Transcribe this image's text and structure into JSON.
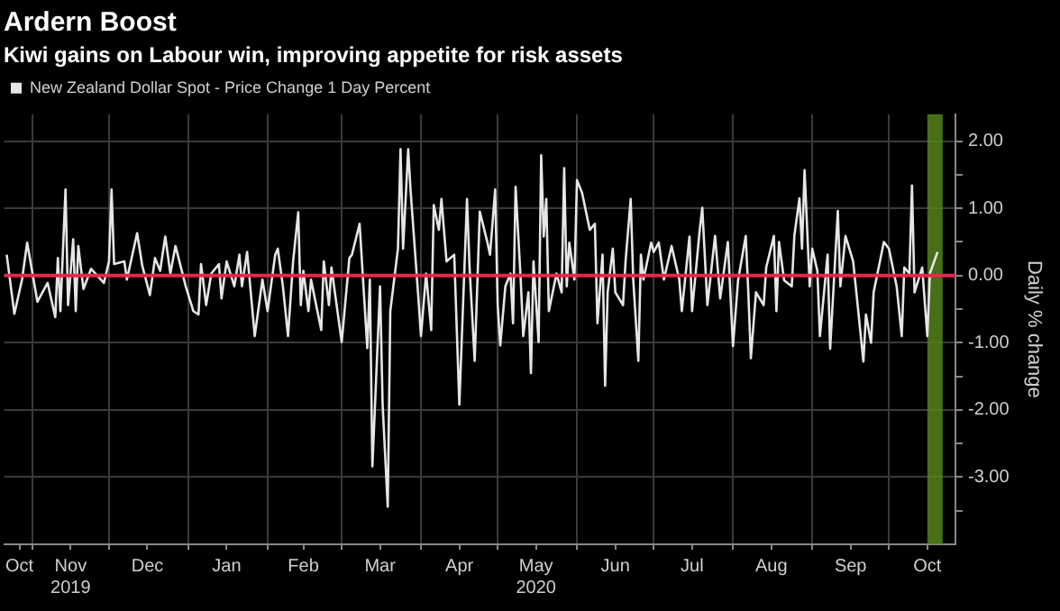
{
  "chart_data": {
    "type": "line",
    "title": "Ardern Boost",
    "subtitle": "Kiwi gains on Labour win, improving appetite for risk assets",
    "ylabel": "Daily % change",
    "x": [
      "2019-10-22",
      "2019-10-25",
      "2019-10-28",
      "2019-10-30",
      "2019-11-03",
      "2019-11-07",
      "2019-11-10",
      "2019-11-11",
      "2019-11-12",
      "2019-11-14",
      "2019-11-15",
      "2019-11-17",
      "2019-11-18",
      "2019-11-19",
      "2019-11-21",
      "2019-11-24",
      "2019-11-29",
      "2019-12-01",
      "2019-12-02",
      "2019-12-03",
      "2019-12-07",
      "2019-12-08",
      "2019-12-12",
      "2019-12-14",
      "2019-12-17",
      "2019-12-19",
      "2019-12-21",
      "2019-12-23",
      "2019-12-25",
      "2019-12-27",
      "2019-12-31",
      "2020-01-03",
      "2020-01-05",
      "2020-01-06",
      "2020-01-08",
      "2020-01-10",
      "2020-01-13",
      "2020-01-14",
      "2020-01-16",
      "2020-01-19",
      "2020-01-21",
      "2020-01-22",
      "2020-01-24",
      "2020-01-27",
      "2020-01-30",
      "2020-02-01",
      "2020-02-04",
      "2020-02-05",
      "2020-02-07",
      "2020-02-09",
      "2020-02-11",
      "2020-02-13",
      "2020-02-14",
      "2020-02-15",
      "2020-02-17",
      "2020-02-18",
      "2020-02-22",
      "2020-02-23",
      "2020-02-25",
      "2020-02-26",
      "2020-03-01",
      "2020-03-04",
      "2020-03-05",
      "2020-03-08",
      "2020-03-11",
      "2020-03-12",
      "2020-03-13",
      "2020-03-16",
      "2020-03-17",
      "2020-03-19",
      "2020-03-20",
      "2020-03-23",
      "2020-03-24",
      "2020-03-25",
      "2020-03-27",
      "2020-03-28",
      "2020-03-31",
      "2020-04-01",
      "2020-04-03",
      "2020-04-05",
      "2020-04-06",
      "2020-04-08",
      "2020-04-09",
      "2020-04-11",
      "2020-04-14",
      "2020-04-16",
      "2020-04-19",
      "2020-04-20",
      "2020-04-22",
      "2020-04-24",
      "2020-04-27",
      "2020-04-28",
      "2020-04-30",
      "2020-05-01",
      "2020-05-02",
      "2020-05-04",
      "2020-05-06",
      "2020-05-07",
      "2020-05-08",
      "2020-05-10",
      "2020-05-11",
      "2020-05-13",
      "2020-05-14",
      "2020-05-15",
      "2020-05-17",
      "2020-05-18",
      "2020-05-19",
      "2020-05-20",
      "2020-05-21",
      "2020-05-24",
      "2020-05-26",
      "2020-05-27",
      "2020-05-28",
      "2020-05-29",
      "2020-05-31",
      "2020-06-01",
      "2020-06-03",
      "2020-06-06",
      "2020-06-08",
      "2020-06-09",
      "2020-06-11",
      "2020-06-12",
      "2020-06-13",
      "2020-06-15",
      "2020-06-16",
      "2020-06-19",
      "2020-06-20",
      "2020-06-22",
      "2020-06-23",
      "2020-06-25",
      "2020-06-26",
      "2020-06-27",
      "2020-06-30",
      "2020-07-01",
      "2020-07-03",
      "2020-07-05",
      "2020-07-08",
      "2020-07-11",
      "2020-07-12",
      "2020-07-15",
      "2020-07-16",
      "2020-07-19",
      "2020-07-20",
      "2020-07-22",
      "2020-07-25",
      "2020-07-27",
      "2020-07-30",
      "2020-08-01",
      "2020-08-03",
      "2020-08-06",
      "2020-08-07",
      "2020-08-08",
      "2020-08-10",
      "2020-08-13",
      "2020-08-14",
      "2020-08-17",
      "2020-08-18",
      "2020-08-19",
      "2020-08-21",
      "2020-08-24",
      "2020-08-25",
      "2020-08-27",
      "2020-08-28",
      "2020-08-29",
      "2020-08-31",
      "2020-09-01",
      "2020-09-03",
      "2020-09-04",
      "2020-09-07",
      "2020-09-08",
      "2020-09-11",
      "2020-09-12",
      "2020-09-14",
      "2020-09-17",
      "2020-09-18",
      "2020-09-21",
      "2020-09-22",
      "2020-09-24",
      "2020-09-25",
      "2020-09-29",
      "2020-10-01",
      "2020-10-04",
      "2020-10-06",
      "2020-10-07",
      "2020-10-09",
      "2020-10-10",
      "2020-10-11",
      "2020-10-14",
      "2020-10-16",
      "2020-10-17",
      "2020-10-20"
    ],
    "series": [
      {
        "name": "New Zealand Dollar Spot - Price Change 1 Day Percent",
        "color": "#e6e6e6",
        "values": [
          0.31,
          -0.57,
          -0.06,
          0.49,
          -0.39,
          -0.11,
          -0.62,
          0.26,
          -0.53,
          1.28,
          -0.44,
          0.54,
          -0.53,
          0.44,
          -0.2,
          0.1,
          -0.11,
          0.21,
          1.28,
          0.17,
          0.21,
          -0.06,
          0.63,
          0.15,
          -0.29,
          0.26,
          0.07,
          0.58,
          0.03,
          0.44,
          -0.16,
          -0.53,
          -0.58,
          0.17,
          -0.44,
          0.03,
          0.17,
          -0.34,
          0.21,
          -0.16,
          0.31,
          -0.16,
          0.35,
          -0.9,
          -0.06,
          -0.53,
          0.31,
          0.4,
          -0.16,
          -0.9,
          0.21,
          0.94,
          -0.44,
          0.07,
          -0.53,
          -0.06,
          -0.81,
          0.21,
          -0.44,
          0.12,
          -0.99,
          0.26,
          0.31,
          0.77,
          -1.08,
          -0.06,
          -2.84,
          -0.16,
          -1.92,
          -3.44,
          -0.53,
          0.4,
          1.88,
          0.4,
          1.88,
          1.23,
          -0.34,
          -0.9,
          0.03,
          -0.81,
          1.05,
          0.68,
          1.14,
          0.21,
          0.31,
          -1.92,
          1.14,
          0.12,
          -1.27,
          0.95,
          0.49,
          0.31,
          1.28,
          -0.44,
          -1.04,
          -0.16,
          0.03,
          -0.71,
          1.32,
          -0.06,
          -0.9,
          -0.25,
          -1.45,
          0.21,
          -0.99,
          1.79,
          0.58,
          1.14,
          -0.53,
          0.03,
          -0.25,
          1.6,
          -0.16,
          0.49,
          -0.06,
          1.42,
          1.23,
          0.68,
          0.77,
          -0.71,
          0.31,
          -1.64,
          -0.25,
          0.4,
          -0.25,
          -0.44,
          0.21,
          1.14,
          -0.06,
          -1.27,
          0.31,
          -0.06,
          0.49,
          0.35,
          0.49,
          -0.06,
          0.44,
          -0.06,
          -0.53,
          0.58,
          -0.53,
          0.68,
          1.01,
          -0.44,
          0.59,
          -0.34,
          0.5,
          -1.05,
          -0.07,
          0.59,
          -0.25,
          -1.23,
          -0.25,
          -0.44,
          0.12,
          0.59,
          -0.53,
          0.5,
          -0.07,
          -0.16,
          0.59,
          1.15,
          0.4,
          1.57,
          -0.16,
          0.4,
          0.07,
          -0.9,
          0.31,
          -1.09,
          0.96,
          -0.16,
          0.59,
          0.21,
          -0.16,
          -1.28,
          -0.58,
          -1.0,
          -0.25,
          0.5,
          0.4,
          -0.16,
          -0.9,
          0.12,
          0.03,
          1.34,
          -0.25,
          0.12,
          -0.9,
          0.03,
          0.35
        ]
      }
    ],
    "xlim": [
      "2019-10-21",
      "2020-10-27"
    ],
    "xticks": [
      {
        "value": "2019-10-27",
        "label": "Oct"
      },
      {
        "value": "2019-11-01",
        "label": null
      },
      {
        "value": "2019-11-16",
        "label": "Nov\n2019"
      },
      {
        "value": "2019-12-01",
        "label": null
      },
      {
        "value": "2019-12-16",
        "label": "Dec"
      },
      {
        "value": "2020-01-01",
        "label": null
      },
      {
        "value": "2020-01-16",
        "label": "Jan"
      },
      {
        "value": "2020-02-01",
        "label": null
      },
      {
        "value": "2020-02-15",
        "label": "Feb"
      },
      {
        "value": "2020-03-01",
        "label": null
      },
      {
        "value": "2020-03-16",
        "label": "Mar"
      },
      {
        "value": "2020-04-01",
        "label": null
      },
      {
        "value": "2020-04-16",
        "label": "Apr"
      },
      {
        "value": "2020-05-01",
        "label": null
      },
      {
        "value": "2020-05-16",
        "label": "May\n2020"
      },
      {
        "value": "2020-06-01",
        "label": null
      },
      {
        "value": "2020-06-16",
        "label": "Jun"
      },
      {
        "value": "2020-07-01",
        "label": null
      },
      {
        "value": "2020-07-16",
        "label": "Jul"
      },
      {
        "value": "2020-08-01",
        "label": null
      },
      {
        "value": "2020-08-16",
        "label": "Aug"
      },
      {
        "value": "2020-09-01",
        "label": null
      },
      {
        "value": "2020-09-16",
        "label": "Sep"
      },
      {
        "value": "2020-10-01",
        "label": null
      },
      {
        "value": "2020-10-16",
        "label": "Oct"
      }
    ],
    "ylim": [
      -4,
      2.4
    ],
    "yticks": [
      {
        "value": -3.5,
        "label": null
      },
      {
        "value": -3,
        "label": "-3.00"
      },
      {
        "value": -2.5,
        "label": null
      },
      {
        "value": -2,
        "label": "-2.00"
      },
      {
        "value": -1.5,
        "label": null
      },
      {
        "value": -1,
        "label": "-1.00"
      },
      {
        "value": -0.5,
        "label": null
      },
      {
        "value": 0,
        "label": "0.00"
      },
      {
        "value": 0.5,
        "label": null
      },
      {
        "value": 1,
        "label": "1.00"
      },
      {
        "value": 1.5,
        "label": null
      },
      {
        "value": 2,
        "label": "2.00"
      }
    ],
    "ref_lines": [
      {
        "axis": "y",
        "value": 0,
        "color": "#e8264f"
      }
    ],
    "bands": [
      {
        "axis": "x",
        "from": "2020-10-16",
        "to": "2020-10-22",
        "color": "#5a8a1e"
      }
    ],
    "grid": true,
    "legend": "top left",
    "marker": "none",
    "line_style": "solid"
  }
}
